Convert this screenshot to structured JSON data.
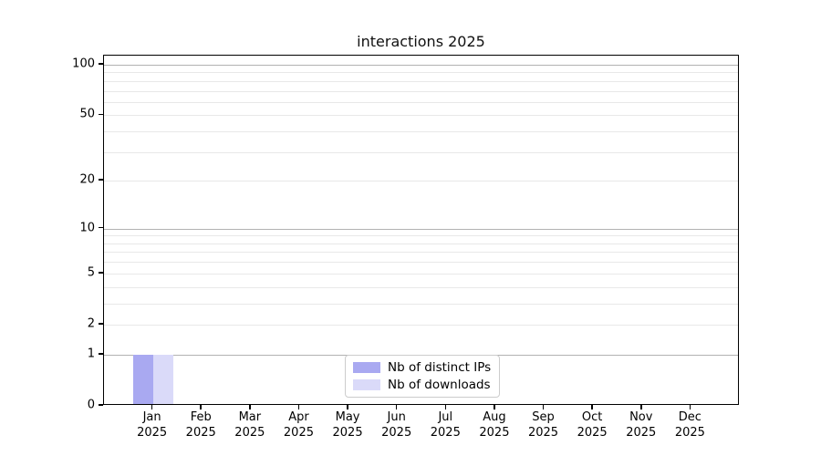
{
  "title": "interactions 2025",
  "chart_data": {
    "type": "bar",
    "title": "interactions 2025",
    "categories": [
      {
        "month": "Jan",
        "year": "2025"
      },
      {
        "month": "Feb",
        "year": "2025"
      },
      {
        "month": "Mar",
        "year": "2025"
      },
      {
        "month": "Apr",
        "year": "2025"
      },
      {
        "month": "May",
        "year": "2025"
      },
      {
        "month": "Jun",
        "year": "2025"
      },
      {
        "month": "Jul",
        "year": "2025"
      },
      {
        "month": "Aug",
        "year": "2025"
      },
      {
        "month": "Sep",
        "year": "2025"
      },
      {
        "month": "Oct",
        "year": "2025"
      },
      {
        "month": "Nov",
        "year": "2025"
      },
      {
        "month": "Dec",
        "year": "2025"
      }
    ],
    "series": [
      {
        "name": "Nb of distinct IPs",
        "color": "#a9a9f1",
        "values": [
          1,
          0,
          0,
          0,
          0,
          0,
          0,
          0,
          0,
          0,
          0,
          0
        ]
      },
      {
        "name": "Nb of downloads",
        "color": "#dadaf9",
        "values": [
          1,
          0,
          0,
          0,
          0,
          0,
          0,
          0,
          0,
          0,
          0,
          0
        ]
      }
    ],
    "xlabel": "",
    "ylabel": "",
    "yscale": "log1p",
    "ylim": [
      0,
      113
    ],
    "yticks": [
      0,
      1,
      2,
      5,
      10,
      20,
      50,
      100
    ],
    "major_gridlines": [
      1,
      10,
      100
    ],
    "minor_gridlines": [
      2,
      3,
      4,
      5,
      6,
      7,
      8,
      9,
      20,
      30,
      40,
      50,
      60,
      70,
      80,
      90
    ],
    "grid": "horizontal only",
    "legend_position": "lower center"
  },
  "legend": {
    "entries": [
      {
        "label": "Nb of distinct IPs",
        "color": "#a9a9f1"
      },
      {
        "label": "Nb of downloads",
        "color": "#dadaf9"
      }
    ]
  },
  "colors": {
    "background": "#ffffff",
    "spine": "#000000",
    "major_grid": "#b2b2b2",
    "minor_grid": "#e8e8e8",
    "bar_distinct_ips": "#a9a9f1",
    "bar_downloads": "#dadaf9",
    "legend_border": "#cccccc",
    "text": "#000000"
  }
}
